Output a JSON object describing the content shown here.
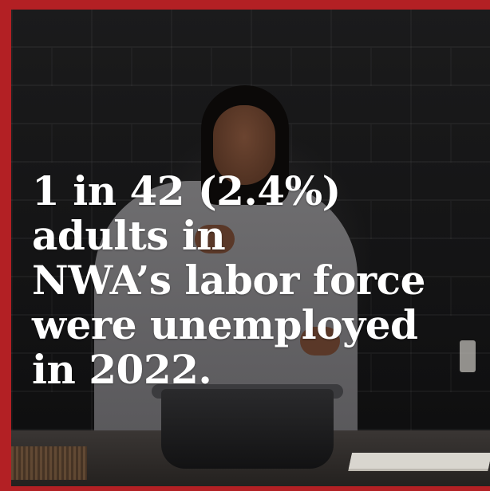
{
  "headline": {
    "line1": "1 in 42 (2.4%)",
    "line2": "adults in",
    "line3": "NWA’s labor force",
    "line4": "were unemployed",
    "line5": "in 2022."
  },
  "colors": {
    "frame": "#b32024",
    "text": "#ffffff",
    "background": "#141415"
  },
  "photo": {
    "subject": "chef seasoning a pot in a dark kitchen"
  }
}
